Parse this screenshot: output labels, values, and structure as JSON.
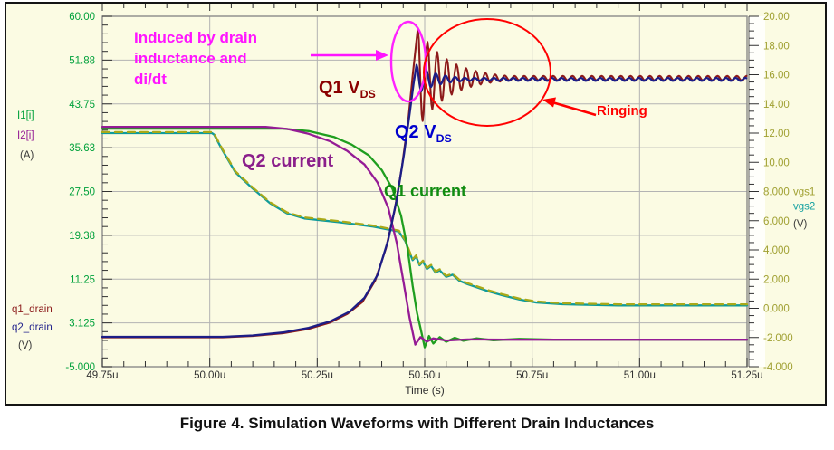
{
  "figure": {
    "caption": "Figure 4. Simulation Waveforms with Different Drain Inductances"
  },
  "chart_data": {
    "type": "line",
    "title": "",
    "xlabel": "Time (s)",
    "grid": true,
    "background": "#FBFBE3",
    "grid_color": "#B3B3B3",
    "border_color": "#8A8A8A",
    "tick_color": "#303030",
    "x_axis": {
      "range_us": [
        49.75,
        51.25
      ],
      "tick_values_us": [
        49.75,
        50.0,
        50.25,
        50.5,
        50.75,
        51.0,
        51.25
      ],
      "tick_labels": [
        "49.75u",
        "50.00u",
        "50.25u",
        "50.50u",
        "50.75u",
        "51.00u",
        "51.25u"
      ],
      "minor_step_us": 0.05,
      "label": "Time (s)",
      "label_color": "#303030"
    },
    "left_axis": {
      "range": [
        -5,
        60
      ],
      "tick_values": [
        60.0,
        51.88,
        43.75,
        35.63,
        27.5,
        19.38,
        11.25,
        3.125,
        -5.0
      ],
      "tick_labels": [
        "60.00",
        "51.88",
        "43.75",
        "35.63",
        "27.50",
        "19.38",
        "11.25",
        "3.125",
        "-5.000"
      ],
      "minor_step": 1.625,
      "number_color": "#00A13B",
      "legend_top": [
        {
          "text": "I1[i]",
          "color": "#00A13B"
        },
        {
          "text": "I2[i]",
          "color": "#951B95"
        },
        {
          "text": "(A)",
          "color": "#3A3A3A"
        }
      ],
      "legend_bottom": [
        {
          "text": "q1_drain",
          "color": "#8B1A1A"
        },
        {
          "text": "q2_drain",
          "color": "#22228C"
        },
        {
          "text": "(V)",
          "color": "#3A3A3A"
        }
      ]
    },
    "right_axis": {
      "range": [
        -4,
        20
      ],
      "tick_values": [
        20,
        18,
        16,
        14,
        12,
        10,
        8,
        6,
        4,
        2,
        0,
        -2,
        -4
      ],
      "tick_labels": [
        "20.00",
        "18.00",
        "16.00",
        "14.00",
        "12.00",
        "10.00",
        "8.000",
        "6.000",
        "4.000",
        "2.000",
        "0.000",
        "-2.000",
        "-4.000"
      ],
      "minor_step": 0.5,
      "number_color": "#A0A032",
      "legend": [
        {
          "text": "vgs1",
          "color": "#A0A032"
        },
        {
          "text": "vgs2",
          "color": "#12A0A0"
        },
        {
          "text": "(V)",
          "color": "#3A3A3A"
        }
      ]
    },
    "series": [
      {
        "name": "vgs2",
        "axis": "right",
        "unit": "V",
        "color": "#0E9B9B",
        "width": 2.3,
        "points": [
          [
            49.75,
            12.0
          ],
          [
            50.005,
            12.0
          ],
          [
            50.01,
            11.9
          ],
          [
            50.03,
            10.8
          ],
          [
            50.06,
            9.3
          ],
          [
            50.1,
            8.2
          ],
          [
            50.14,
            7.2
          ],
          [
            50.18,
            6.5
          ],
          [
            50.22,
            6.15
          ],
          [
            50.3,
            5.9
          ],
          [
            50.38,
            5.6
          ],
          [
            50.44,
            5.25
          ],
          [
            50.455,
            4.6
          ],
          [
            50.465,
            3.8
          ],
          [
            50.472,
            3.3
          ],
          [
            50.48,
            3.55
          ],
          [
            50.488,
            2.95
          ],
          [
            50.496,
            3.2
          ],
          [
            50.505,
            2.7
          ],
          [
            50.515,
            2.9
          ],
          [
            50.525,
            2.45
          ],
          [
            50.535,
            2.6
          ],
          [
            50.55,
            2.15
          ],
          [
            50.565,
            2.3
          ],
          [
            50.58,
            1.9
          ],
          [
            50.6,
            1.65
          ],
          [
            50.62,
            1.45
          ],
          [
            50.65,
            1.15
          ],
          [
            50.68,
            0.9
          ],
          [
            50.72,
            0.6
          ],
          [
            50.76,
            0.4
          ],
          [
            50.82,
            0.28
          ],
          [
            50.95,
            0.2
          ],
          [
            51.25,
            0.2
          ]
        ]
      },
      {
        "name": "vgs1",
        "axis": "right",
        "unit": "V",
        "color": "#A9A918",
        "width": 2.3,
        "dash": "8,6",
        "value_offset": 0.07,
        "points": [
          [
            49.75,
            12.0
          ],
          [
            50.005,
            12.0
          ],
          [
            50.01,
            11.9
          ],
          [
            50.03,
            10.8
          ],
          [
            50.06,
            9.3
          ],
          [
            50.1,
            8.2
          ],
          [
            50.14,
            7.2
          ],
          [
            50.18,
            6.5
          ],
          [
            50.22,
            6.15
          ],
          [
            50.3,
            5.9
          ],
          [
            50.38,
            5.6
          ],
          [
            50.44,
            5.25
          ],
          [
            50.455,
            4.6
          ],
          [
            50.465,
            3.8
          ],
          [
            50.472,
            3.3
          ],
          [
            50.48,
            3.55
          ],
          [
            50.488,
            2.95
          ],
          [
            50.496,
            3.2
          ],
          [
            50.505,
            2.7
          ],
          [
            50.515,
            2.9
          ],
          [
            50.525,
            2.45
          ],
          [
            50.535,
            2.6
          ],
          [
            50.55,
            2.15
          ],
          [
            50.565,
            2.3
          ],
          [
            50.58,
            1.9
          ],
          [
            50.6,
            1.65
          ],
          [
            50.62,
            1.45
          ],
          [
            50.65,
            1.15
          ],
          [
            50.68,
            0.9
          ],
          [
            50.72,
            0.6
          ],
          [
            50.76,
            0.4
          ],
          [
            50.82,
            0.28
          ],
          [
            50.95,
            0.2
          ],
          [
            51.25,
            0.2
          ]
        ]
      },
      {
        "name": "I1",
        "axis": "left",
        "unit": "A",
        "color": "#1F9E1F",
        "width": 2.3,
        "points": [
          [
            49.75,
            39.15
          ],
          [
            50.17,
            39.15
          ],
          [
            50.23,
            38.7
          ],
          [
            50.29,
            37.6
          ],
          [
            50.33,
            36.2
          ],
          [
            50.37,
            34.2
          ],
          [
            50.4,
            31.5
          ],
          [
            50.425,
            28.0
          ],
          [
            50.445,
            23.0
          ],
          [
            50.46,
            17.0
          ],
          [
            50.472,
            10.0
          ],
          [
            50.482,
            5.0
          ],
          [
            50.49,
            2.2
          ],
          [
            50.5,
            -1.4
          ],
          [
            50.51,
            0.7
          ],
          [
            50.52,
            -0.7
          ],
          [
            50.535,
            0.5
          ],
          [
            50.55,
            -0.4
          ],
          [
            50.57,
            0.35
          ],
          [
            50.59,
            -0.2
          ],
          [
            50.62,
            0.25
          ],
          [
            50.66,
            -0.1
          ],
          [
            50.72,
            0.15
          ],
          [
            50.8,
            0.0
          ],
          [
            51.25,
            0.0
          ]
        ]
      },
      {
        "name": "I2",
        "axis": "left",
        "unit": "A",
        "color": "#951B95",
        "width": 2.3,
        "points": [
          [
            49.75,
            39.5
          ],
          [
            50.13,
            39.5
          ],
          [
            50.18,
            39.1
          ],
          [
            50.23,
            38.2
          ],
          [
            50.28,
            36.8
          ],
          [
            50.32,
            35.0
          ],
          [
            50.36,
            32.5
          ],
          [
            50.39,
            29.2
          ],
          [
            50.415,
            24.5
          ],
          [
            50.435,
            18.0
          ],
          [
            50.45,
            11.0
          ],
          [
            50.465,
            4.0
          ],
          [
            50.478,
            -0.9
          ],
          [
            50.49,
            0.5
          ],
          [
            50.505,
            -0.35
          ],
          [
            50.52,
            0.25
          ],
          [
            50.55,
            -0.15
          ],
          [
            50.6,
            0.05
          ],
          [
            50.7,
            0.0
          ],
          [
            51.25,
            0.0
          ]
        ]
      },
      {
        "name": "q1_drain",
        "axis": "left",
        "unit": "V",
        "color": "#8C1A1A",
        "width": 2.1,
        "points": [
          [
            49.75,
            0.45
          ],
          [
            50.03,
            0.45
          ],
          [
            50.1,
            0.7
          ],
          [
            50.17,
            1.2
          ],
          [
            50.23,
            2.0
          ],
          [
            50.28,
            3.2
          ],
          [
            50.32,
            4.8
          ],
          [
            50.355,
            7.0
          ],
          [
            50.385,
            11.0
          ],
          [
            50.41,
            17.0
          ],
          [
            50.43,
            24.0
          ],
          [
            50.447,
            32.0
          ],
          [
            50.462,
            41.0
          ],
          [
            50.472,
            49.0
          ],
          [
            50.484,
            57.8
          ]
        ],
        "ring": {
          "t0": 50.484,
          "t1": 51.25,
          "period_us": 0.0225,
          "amp0": 9.3,
          "tau_us": 0.07,
          "center": 48.5,
          "floor": 0.45
        }
      },
      {
        "name": "q2_drain",
        "axis": "left",
        "unit": "V",
        "color": "#1D1D86",
        "width": 2.3,
        "points": [
          [
            49.75,
            0.55
          ],
          [
            50.03,
            0.55
          ],
          [
            50.1,
            0.8
          ],
          [
            50.17,
            1.35
          ],
          [
            50.23,
            2.2
          ],
          [
            50.28,
            3.4
          ],
          [
            50.325,
            5.2
          ],
          [
            50.36,
            7.8
          ],
          [
            50.39,
            12.0
          ],
          [
            50.415,
            18.5
          ],
          [
            50.435,
            26.0
          ],
          [
            50.452,
            34.5
          ],
          [
            50.465,
            42.0
          ],
          [
            50.474,
            47.5
          ],
          [
            50.481,
            51.0
          ]
        ],
        "ring": {
          "t0": 50.481,
          "t1": 51.25,
          "period_us": 0.0225,
          "amp0": 2.75,
          "tau_us": 0.05,
          "center": 48.3,
          "floor": 0.28
        }
      }
    ],
    "annotations": {
      "induced": {
        "text": "Induced by drain\ninductance and\ndi/dt",
        "color": "#FF14FF"
      },
      "q1_vds": {
        "main": "Q1 V",
        "sub": "DS",
        "color": "#8B0000"
      },
      "q2_vds": {
        "main": "Q2 V",
        "sub": "DS",
        "color": "#0000CD"
      },
      "q2_current": {
        "text": "Q2 current",
        "color": "#8B1F8B"
      },
      "q1_current": {
        "text": "Q1 current",
        "color": "#118C11"
      },
      "ringing": {
        "text": "Ringing",
        "color": "#FF0000"
      },
      "ellipse_peak_color": "#FF22FF",
      "ellipse_ring_color": "#FF0000"
    }
  }
}
